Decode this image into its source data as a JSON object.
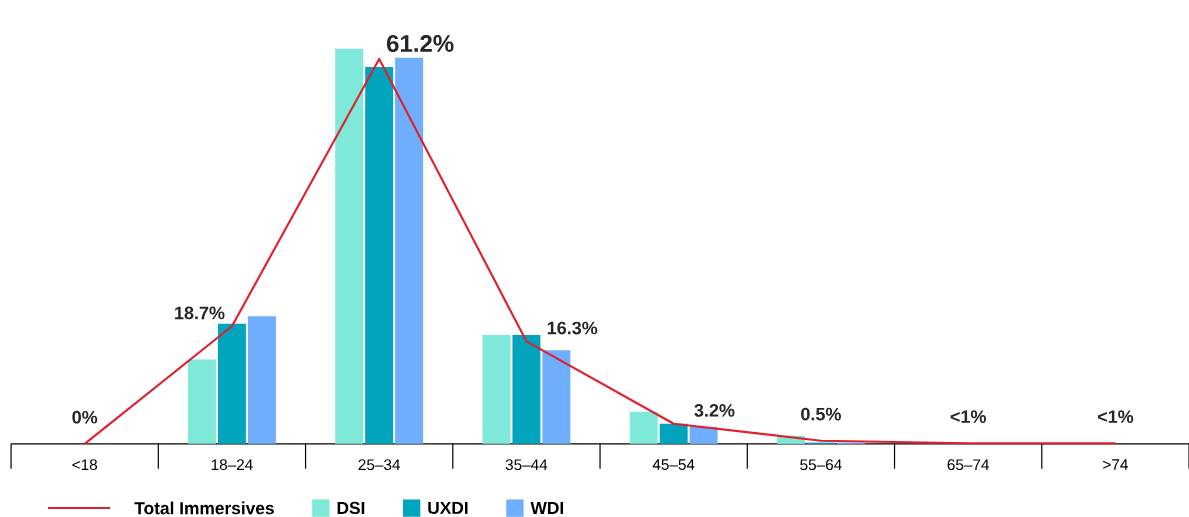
{
  "chart_data": {
    "type": "bar",
    "categories": [
      "<18",
      "18–24",
      "25–34",
      "35–44",
      "45–54",
      "55–64",
      "65–74",
      ">74"
    ],
    "series": [
      {
        "name": "Total Immersives",
        "type": "line",
        "color": "#e0202e",
        "values": [
          0,
          18.7,
          61.2,
          16.3,
          3.2,
          0.5,
          0.1,
          0.1
        ],
        "value_labels": [
          "0%",
          "18.7%",
          "61.2%",
          "16.3%",
          "3.2%",
          "0.5%",
          "<1%",
          "<1%"
        ]
      },
      {
        "name": "DSI",
        "color": "#7ee8d9",
        "values": [
          0,
          13.4,
          62.8,
          17.3,
          5.1,
          1.3,
          0,
          0
        ]
      },
      {
        "name": "UXDI",
        "color": "#00a5bd",
        "values": [
          0,
          19.1,
          59.9,
          17.3,
          3.2,
          0.2,
          0,
          0
        ]
      },
      {
        "name": "WDI",
        "color": "#6eaefc",
        "values": [
          0,
          20.3,
          61.4,
          14.9,
          2.7,
          0.2,
          0,
          0
        ]
      }
    ],
    "legend": "bottom",
    "grid": false,
    "marker": "none",
    "line_style": "solid"
  }
}
